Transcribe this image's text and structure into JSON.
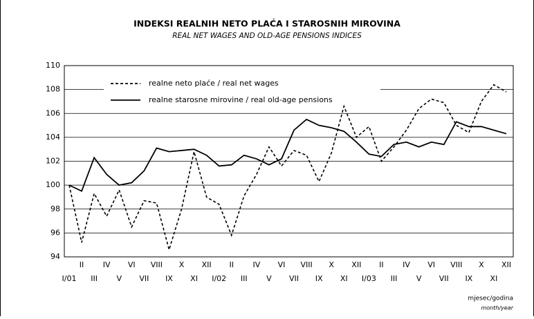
{
  "chart_data": {
    "type": "line",
    "title": "INDEKSI REALNIH NETO PLAĆA I STAROSNIH MIROVINA",
    "subtitle": "REAL NET WAGES AND OLD-AGE PENSIONS INDICES",
    "x_label": "mjesec/godina",
    "x_label_en": "month/year",
    "categories": [
      "I/01",
      "II",
      "III",
      "IV",
      "V",
      "VI",
      "VII",
      "VIII",
      "IX",
      "X",
      "XI",
      "XII",
      "I/02",
      "II",
      "III",
      "IV",
      "V",
      "VI",
      "VII",
      "VIII",
      "IX",
      "X",
      "XI",
      "XII",
      "I/03",
      "II",
      "III",
      "IV",
      "V",
      "VI",
      "VII",
      "VIII",
      "IX",
      "X",
      "XI",
      "XII"
    ],
    "series": [
      {
        "name": "realne neto plaće / real net wages",
        "color": "#000000",
        "dashed": true,
        "values": [
          100,
          95.2,
          99.3,
          97.4,
          99.6,
          96.5,
          98.7,
          98.5,
          94.6,
          98,
          102.8,
          99,
          98.4,
          95.8,
          99.1,
          100.9,
          103.2,
          101.6,
          102.9,
          102.5,
          100.3,
          102.7,
          106.6,
          104,
          104.9,
          102,
          103.2,
          104.6,
          106.4,
          107.2,
          106.9,
          105,
          104.4,
          107,
          108.4,
          107.8
        ]
      },
      {
        "name": "realne starosne mirovine / real old-age pensions",
        "color": "#000000",
        "dashed": false,
        "values": [
          100,
          99.5,
          102.3,
          100.9,
          100,
          100.2,
          101.2,
          103.1,
          102.8,
          102.9,
          103,
          102.5,
          101.6,
          101.7,
          102.5,
          102.2,
          101.7,
          102.2,
          104.6,
          105.5,
          105,
          104.8,
          104.5,
          103.6,
          102.6,
          102.4,
          103.4,
          103.6,
          103.2,
          103.6,
          103.4,
          105.3,
          104.9,
          104.9,
          104.6,
          104.3
        ]
      }
    ],
    "ylim": [
      94,
      110
    ],
    "yticks": [
      94,
      96,
      98,
      100,
      102,
      104,
      106,
      108,
      110
    ],
    "grid": true
  }
}
